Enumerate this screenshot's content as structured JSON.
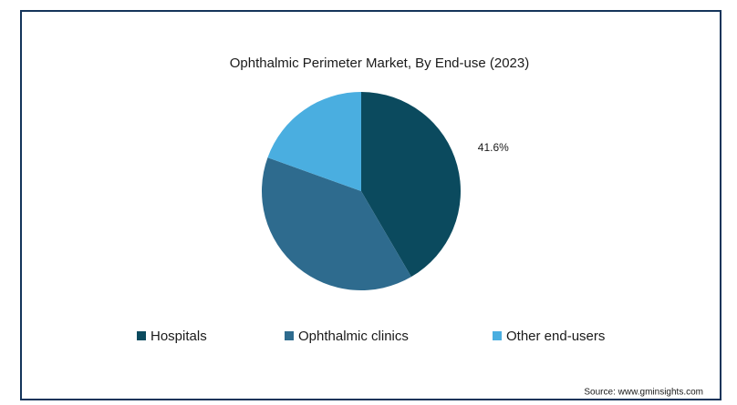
{
  "chart_data": {
    "type": "pie",
    "title": "Ophthalmic Perimeter Market, By End-use (2023)",
    "categories": [
      "Hospitals",
      "Ophthalmic clinics",
      "Other end-users"
    ],
    "values": [
      41.6,
      38.9,
      19.5
    ],
    "value_labels": [
      "41.6%",
      null,
      null
    ],
    "colors": [
      "#0b4a5e",
      "#2e6b8e",
      "#4aaee0"
    ],
    "legend": "bottom",
    "source": "Source: www.gminsights.com"
  }
}
